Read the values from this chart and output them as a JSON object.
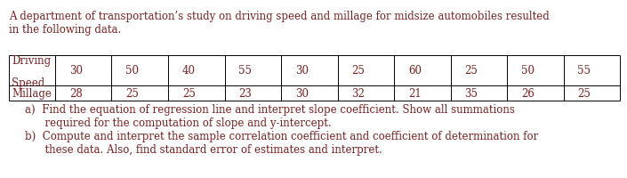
{
  "title_line1": "A department of transportation’s study on driving speed and millage for midsize automobiles resulted",
  "title_line2": "in the following data.",
  "row1_label_line1": "Driving",
  "row1_label_line2": "Speed",
  "row2_label": "Millage",
  "row1_values": [
    "30",
    "50",
    "40",
    "55",
    "30",
    "25",
    "60",
    "25",
    "50",
    "55"
  ],
  "row2_values": [
    "28",
    "25",
    "25",
    "23",
    "30",
    "32",
    "21",
    "35",
    "26",
    "25"
  ],
  "item_a_line1": "a)  Find the equation of regression line and interpret slope coefficient. Show all summations",
  "item_a_line2": "      required for the computation of slope and y-intercept.",
  "item_b_line1": "b)  Compute and interpret the sample correlation coefficient and coefficient of determination for",
  "item_b_line2": "      these data. Also, find standard error of estimates and interpret.",
  "text_color": "#7B2020",
  "font_size": 8.5,
  "bg_color": "#ffffff",
  "table_line_color": "#000000",
  "fig_width": 7.05,
  "fig_height": 2.01,
  "dpi": 100
}
